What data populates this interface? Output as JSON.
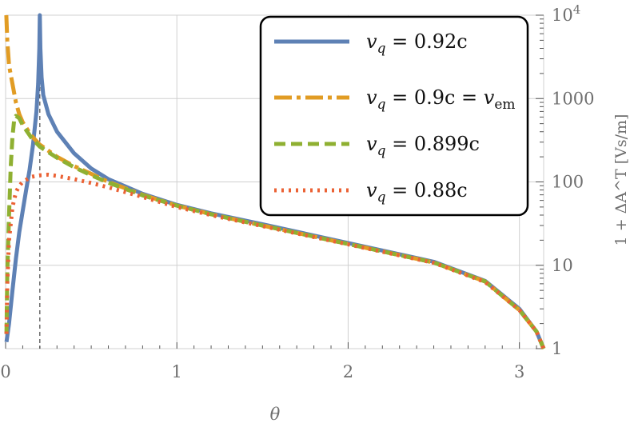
{
  "chart_data": {
    "type": "line",
    "title": "",
    "xlabel": "θ",
    "ylabel": "1 + ΔA^T [Vs/m]",
    "xlim": [
      0,
      3.1416
    ],
    "ylim": [
      1,
      10000
    ],
    "y_scale": "log",
    "grid": true,
    "legend_position": "top-right",
    "x_ticks": [
      "0",
      "1",
      "2",
      "3"
    ],
    "y_ticks": [
      "1",
      "10",
      "100",
      "1000",
      "10^4"
    ],
    "vertical_reference_line": {
      "x": 0.2,
      "style": "dashed"
    },
    "series": [
      {
        "name": "v_q = 0.92c",
        "legend": {
          "var": "v",
          "sub": "q",
          "rest": " = 0.92c",
          "tail": "",
          "tail_sub": ""
        },
        "color": "#5e81b5",
        "dash": "solid",
        "width": 5,
        "points": [
          [
            0.005,
            1.2
          ],
          [
            0.02,
            2
          ],
          [
            0.04,
            5
          ],
          [
            0.06,
            12
          ],
          [
            0.08,
            25
          ],
          [
            0.1,
            45
          ],
          [
            0.12,
            80
          ],
          [
            0.14,
            140
          ],
          [
            0.16,
            280
          ],
          [
            0.18,
            700
          ],
          [
            0.19,
            1500
          ],
          [
            0.197,
            4000
          ],
          [
            0.2,
            10000
          ],
          [
            0.203,
            4000
          ],
          [
            0.21,
            1800
          ],
          [
            0.22,
            1100
          ],
          [
            0.25,
            650
          ],
          [
            0.3,
            400
          ],
          [
            0.4,
            220
          ],
          [
            0.5,
            145
          ],
          [
            0.6,
            108
          ],
          [
            0.8,
            72
          ],
          [
            1.0,
            53
          ],
          [
            1.2,
            42
          ],
          [
            1.5,
            31
          ],
          [
            2.0,
            18.5
          ],
          [
            2.5,
            11
          ],
          [
            2.8,
            6.5
          ],
          [
            3.0,
            3
          ],
          [
            3.1,
            1.6
          ],
          [
            3.1416,
            1
          ]
        ]
      },
      {
        "name": "v_q = 0.9c = v_em",
        "legend": {
          "var": "v",
          "sub": "q",
          "rest": " = 0.9c = ",
          "tail": "v",
          "tail_sub": "em"
        },
        "color": "#e19c24",
        "dash": "22,6,5,6",
        "width": 5,
        "points": [
          [
            0.004,
            10000
          ],
          [
            0.01,
            5000
          ],
          [
            0.02,
            2500
          ],
          [
            0.04,
            1500
          ],
          [
            0.06,
            900
          ],
          [
            0.08,
            650
          ],
          [
            0.1,
            520
          ],
          [
            0.15,
            360
          ],
          [
            0.2,
            280
          ],
          [
            0.3,
            200
          ],
          [
            0.4,
            155
          ],
          [
            0.5,
            125
          ],
          [
            0.6,
            100
          ],
          [
            0.8,
            70
          ],
          [
            1.0,
            52
          ],
          [
            1.2,
            41
          ],
          [
            1.5,
            30
          ],
          [
            2.0,
            18
          ],
          [
            2.5,
            10.8
          ],
          [
            2.8,
            6.4
          ],
          [
            3.0,
            2.9
          ],
          [
            3.1,
            1.6
          ],
          [
            3.1416,
            1
          ]
        ]
      },
      {
        "name": "v_q = 0.899c",
        "legend": {
          "var": "v",
          "sub": "q",
          "rest": " = 0.899c",
          "tail": "",
          "tail_sub": ""
        },
        "color": "#8fb032",
        "dash": "14,7",
        "width": 5,
        "points": [
          [
            0.005,
            1.5
          ],
          [
            0.01,
            8
          ],
          [
            0.02,
            40
          ],
          [
            0.03,
            150
          ],
          [
            0.04,
            350
          ],
          [
            0.05,
            550
          ],
          [
            0.06,
            620
          ],
          [
            0.08,
            580
          ],
          [
            0.1,
            480
          ],
          [
            0.15,
            340
          ],
          [
            0.2,
            265
          ],
          [
            0.3,
            195
          ],
          [
            0.4,
            150
          ],
          [
            0.5,
            120
          ],
          [
            0.6,
            98
          ],
          [
            0.8,
            69
          ],
          [
            1.0,
            52
          ],
          [
            1.2,
            41
          ],
          [
            1.5,
            30
          ],
          [
            2.0,
            18
          ],
          [
            2.5,
            10.8
          ],
          [
            2.8,
            6.4
          ],
          [
            3.0,
            2.9
          ],
          [
            3.1,
            1.6
          ],
          [
            3.1416,
            1
          ]
        ]
      },
      {
        "name": "v_q = 0.88c",
        "legend": {
          "var": "v",
          "sub": "q",
          "rest": " = 0.88c",
          "tail": "",
          "tail_sub": ""
        },
        "color": "#eb6235",
        "dash": "3,6",
        "width": 5,
        "points": [
          [
            0.005,
            1.5
          ],
          [
            0.01,
            6
          ],
          [
            0.02,
            20
          ],
          [
            0.04,
            50
          ],
          [
            0.06,
            75
          ],
          [
            0.08,
            90
          ],
          [
            0.1,
            100
          ],
          [
            0.15,
            115
          ],
          [
            0.2,
            120
          ],
          [
            0.25,
            122
          ],
          [
            0.3,
            118
          ],
          [
            0.4,
            108
          ],
          [
            0.5,
            97
          ],
          [
            0.6,
            86
          ],
          [
            0.8,
            66
          ],
          [
            1.0,
            50
          ],
          [
            1.2,
            40
          ],
          [
            1.5,
            29.5
          ],
          [
            2.0,
            17.8
          ],
          [
            2.5,
            10.7
          ],
          [
            2.8,
            6.3
          ],
          [
            3.0,
            2.9
          ],
          [
            3.1,
            1.6
          ],
          [
            3.1416,
            1
          ]
        ]
      }
    ]
  }
}
